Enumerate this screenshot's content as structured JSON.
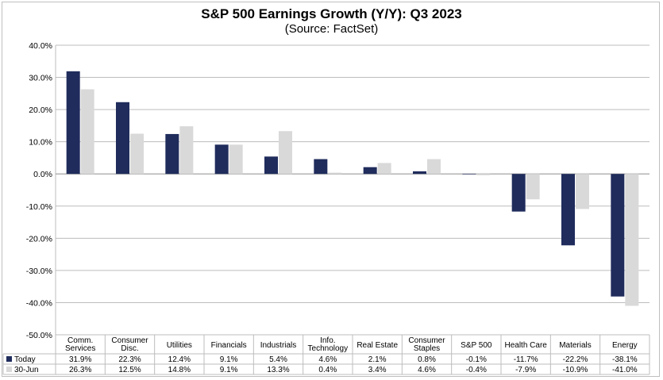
{
  "chart_data": {
    "type": "bar",
    "title": "S&P 500 Earnings Growth (Y/Y): Q3 2023",
    "subtitle": "(Source: FactSet)",
    "categories": [
      [
        "Comm.",
        "Services"
      ],
      [
        "Consumer",
        "Disc."
      ],
      [
        "Utilities"
      ],
      [
        "Financials"
      ],
      [
        "Industrials"
      ],
      [
        "Info.",
        "Technology"
      ],
      [
        "Real Estate"
      ],
      [
        "Consumer",
        "Staples"
      ],
      [
        "S&P 500"
      ],
      [
        "Health Care"
      ],
      [
        "Materials"
      ],
      [
        "Energy"
      ]
    ],
    "series": [
      {
        "name": "Today",
        "color": "#1f2c5c",
        "values": [
          31.9,
          22.3,
          12.4,
          9.1,
          5.4,
          4.6,
          2.1,
          0.8,
          -0.1,
          -11.7,
          -22.2,
          -38.1
        ],
        "labels": [
          "31.9%",
          "22.3%",
          "12.4%",
          "9.1%",
          "5.4%",
          "4.6%",
          "2.1%",
          "0.8%",
          "-0.1%",
          "-11.7%",
          "-22.2%",
          "-38.1%"
        ]
      },
      {
        "name": "30-Jun",
        "color": "#d9d9d9",
        "values": [
          26.3,
          12.5,
          14.8,
          9.1,
          13.3,
          0.4,
          3.4,
          4.6,
          -0.4,
          -7.9,
          -10.9,
          -41.0
        ],
        "labels": [
          "26.3%",
          "12.5%",
          "14.8%",
          "9.1%",
          "13.3%",
          "0.4%",
          "3.4%",
          "4.6%",
          "-0.4%",
          "-7.9%",
          "-10.9%",
          "-41.0%"
        ]
      }
    ],
    "ylim": [
      -50,
      40
    ],
    "ytick_step": 10,
    "ytick_labels": [
      "40.0%",
      "30.0%",
      "20.0%",
      "10.0%",
      "0.0%",
      "-10.0%",
      "-20.0%",
      "-30.0%",
      "-40.0%",
      "-50.0%"
    ],
    "grid": true,
    "legend": "data-table"
  }
}
